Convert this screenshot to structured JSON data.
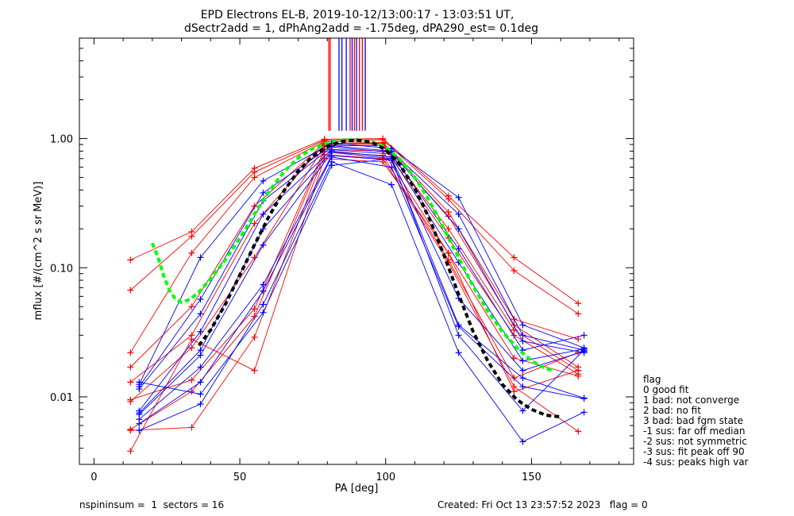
{
  "chart_data": {
    "type": "line",
    "title": "EPD Electrons EL-B, 2019-10-12/13:00:17 - 13:03:51 UT,",
    "subtitle": "dSectr2add = 1, dPhAng2add = -1.75deg, dPA290_est=   0.1deg",
    "xlabel": "PA [deg]",
    "ylabel": "mflux [#/(cm^2 s sr MeV)]",
    "xlim": [
      -5,
      185
    ],
    "ylim": [
      0.003,
      6.0
    ],
    "y_scale": "log",
    "x_ticks": [
      0,
      50,
      100,
      150
    ],
    "y_ticks": [
      {
        "value": 0.01,
        "label": "0.01"
      },
      {
        "value": 0.1,
        "label": "0.10"
      },
      {
        "value": 1.0,
        "label": "1.00"
      }
    ],
    "peak_markers": [
      {
        "x": 80.5,
        "color": "#ff0000"
      },
      {
        "x": 81.0,
        "color": "#ff0000"
      },
      {
        "x": 84.0,
        "color": "#0000ff"
      },
      {
        "x": 85.0,
        "color": "#0000ff"
      },
      {
        "x": 86.5,
        "color": "#0000ff"
      },
      {
        "x": 87.8,
        "color": "#ff0000"
      },
      {
        "x": 88.5,
        "color": "#0000ff"
      },
      {
        "x": 89.3,
        "color": "#ff0000"
      },
      {
        "x": 90.0,
        "color": "#0000ff"
      },
      {
        "x": 91.0,
        "color": "#ff0000"
      },
      {
        "x": 92.0,
        "color": "#ff0000"
      },
      {
        "x": 93.0,
        "color": "#0000ff"
      }
    ],
    "marker_range": [
      1.15,
      6.0
    ],
    "series": [
      {
        "color": "#ff0000",
        "points": [
          [
            12.5,
            0.115
          ],
          [
            33.5,
            0.19
          ],
          [
            55,
            0.59
          ],
          [
            79,
            0.99
          ],
          [
            99,
            1.0
          ],
          [
            121.5,
            0.36
          ],
          [
            144,
            0.12
          ],
          [
            166,
            0.053
          ]
        ]
      },
      {
        "color": "#ff0000",
        "points": [
          [
            12.5,
            0.067
          ],
          [
            33.5,
            0.175
          ],
          [
            55,
            0.55
          ],
          [
            79,
            0.97
          ],
          [
            99,
            0.98
          ],
          [
            121.5,
            0.34
          ],
          [
            144,
            0.095
          ],
          [
            166,
            0.044
          ]
        ]
      },
      {
        "color": "#ff0000",
        "points": [
          [
            12.5,
            0.022
          ],
          [
            33.5,
            0.13
          ],
          [
            55,
            0.5
          ],
          [
            79,
            0.95
          ],
          [
            99,
            0.93
          ],
          [
            121.5,
            0.27
          ],
          [
            144,
            0.04
          ],
          [
            166,
            0.028
          ]
        ]
      },
      {
        "color": "#ff0000",
        "points": [
          [
            12.5,
            0.017
          ],
          [
            33.5,
            0.05
          ],
          [
            55,
            0.3
          ],
          [
            79,
            0.92
          ],
          [
            99,
            0.92
          ],
          [
            121.5,
            0.25
          ],
          [
            144,
            0.036
          ],
          [
            166,
            0.017
          ]
        ]
      },
      {
        "color": "#ff0000",
        "points": [
          [
            12.5,
            0.013
          ],
          [
            33.5,
            0.03
          ],
          [
            55,
            0.22
          ],
          [
            79,
            0.9
          ],
          [
            99,
            0.9
          ],
          [
            121.5,
            0.2
          ],
          [
            144,
            0.033
          ],
          [
            166,
            0.016
          ]
        ]
      },
      {
        "color": "#ff0000",
        "points": [
          [
            12.5,
            0.0092
          ],
          [
            33.5,
            0.024
          ],
          [
            55,
            0.12
          ],
          [
            79,
            0.88
          ],
          [
            99,
            0.88
          ],
          [
            121.5,
            0.17
          ],
          [
            144,
            0.03
          ],
          [
            166,
            0.015
          ]
        ]
      },
      {
        "color": "#ff0000",
        "points": [
          [
            12.5,
            0.0095
          ],
          [
            33.5,
            0.0135
          ],
          [
            55,
            0.048
          ],
          [
            79,
            0.83
          ],
          [
            99,
            0.8
          ],
          [
            121.5,
            0.13
          ],
          [
            144,
            0.02
          ],
          [
            166,
            0.0145
          ]
        ]
      },
      {
        "color": "#ff0000",
        "points": [
          [
            12.5,
            0.0056
          ],
          [
            33.5,
            0.011
          ],
          [
            55,
            0.042
          ],
          [
            79,
            0.79
          ],
          [
            99,
            0.74
          ],
          [
            121.5,
            0.115
          ],
          [
            144,
            0.014
          ],
          [
            166,
            0.022
          ]
        ]
      },
      {
        "color": "#ff0000",
        "points": [
          [
            12.5,
            0.0055
          ],
          [
            33.5,
            0.0058
          ],
          [
            55,
            0.029
          ],
          [
            79,
            0.75
          ],
          [
            99,
            0.7
          ],
          [
            121.5,
            0.11
          ],
          [
            144,
            0.012
          ],
          [
            166,
            0.0054
          ]
        ]
      },
      {
        "color": "#ff0000",
        "points": [
          [
            12.5,
            0.0038
          ],
          [
            33.5,
            0.028
          ],
          [
            55,
            0.016
          ],
          [
            79,
            0.7
          ],
          [
            99,
            0.66
          ],
          [
            121.5,
            0.13
          ],
          [
            144,
            0.011
          ],
          [
            166,
            0.016
          ]
        ]
      },
      {
        "color": "#0000ff",
        "points": [
          [
            15.5,
            0.0125
          ],
          [
            36.5,
            0.12
          ],
          [
            58,
            0.47
          ],
          [
            81.5,
            0.92
          ],
          [
            102,
            0.84
          ],
          [
            125,
            0.35
          ],
          [
            147,
            0.036
          ],
          [
            168,
            0.024
          ]
        ]
      },
      {
        "color": "#0000ff",
        "points": [
          [
            15.5,
            0.012
          ],
          [
            36.5,
            0.057
          ],
          [
            58,
            0.38
          ],
          [
            81.5,
            0.88
          ],
          [
            102,
            0.8
          ],
          [
            125,
            0.26
          ],
          [
            147,
            0.03
          ],
          [
            168,
            0.023
          ]
        ]
      },
      {
        "color": "#0000ff",
        "points": [
          [
            15.5,
            0.0115
          ],
          [
            36.5,
            0.044
          ],
          [
            58,
            0.33
          ],
          [
            81.5,
            0.86
          ],
          [
            102,
            0.78
          ],
          [
            125,
            0.2
          ],
          [
            147,
            0.027
          ],
          [
            168,
            0.022
          ]
        ]
      },
      {
        "color": "#0000ff",
        "points": [
          [
            15.5,
            0.0078
          ],
          [
            36.5,
            0.032
          ],
          [
            58,
            0.26
          ],
          [
            81.5,
            0.82
          ],
          [
            102,
            0.76
          ],
          [
            125,
            0.14
          ],
          [
            147,
            0.023
          ],
          [
            168,
            0.03
          ]
        ]
      },
      {
        "color": "#0000ff",
        "points": [
          [
            15.5,
            0.0075
          ],
          [
            36.5,
            0.023
          ],
          [
            58,
            0.2
          ],
          [
            81.5,
            0.8
          ],
          [
            102,
            0.72
          ],
          [
            125,
            0.11
          ],
          [
            147,
            0.019
          ],
          [
            168,
            0.0235
          ]
        ]
      },
      {
        "color": "#0000ff",
        "points": [
          [
            15.5,
            0.0073
          ],
          [
            36.5,
            0.021
          ],
          [
            58,
            0.15
          ],
          [
            81.5,
            0.78
          ],
          [
            102,
            0.7
          ],
          [
            125,
            0.058
          ],
          [
            147,
            0.016
          ],
          [
            168,
            0.0225
          ]
        ]
      },
      {
        "color": "#0000ff",
        "points": [
          [
            15.5,
            0.0067
          ],
          [
            36.5,
            0.017
          ],
          [
            58,
            0.074
          ],
          [
            81.5,
            0.74
          ],
          [
            102,
            0.68
          ],
          [
            125,
            0.036
          ],
          [
            147,
            0.014
          ],
          [
            168,
            0.0098
          ]
        ]
      },
      {
        "color": "#0000ff",
        "points": [
          [
            15.5,
            0.0062
          ],
          [
            36.5,
            0.013
          ],
          [
            58,
            0.066
          ],
          [
            81.5,
            0.72
          ],
          [
            102,
            0.6
          ],
          [
            125,
            0.035
          ],
          [
            147,
            0.012
          ],
          [
            168,
            0.0097
          ]
        ]
      },
      {
        "color": "#0000ff",
        "points": [
          [
            15.5,
            0.0055
          ],
          [
            36.5,
            0.0088
          ],
          [
            58,
            0.052
          ],
          [
            81.5,
            0.66
          ],
          [
            102,
            0.44
          ],
          [
            125,
            0.022
          ],
          [
            147,
            0.0045
          ],
          [
            168,
            0.0076
          ]
        ]
      },
      {
        "color": "#0000ff",
        "points": [
          [
            15.5,
            0.013
          ],
          [
            36.5,
            0.0105
          ],
          [
            58,
            0.045
          ],
          [
            81.5,
            0.62
          ],
          [
            102,
            0.7
          ],
          [
            125,
            0.03
          ],
          [
            147,
            0.0078
          ],
          [
            168,
            0.023
          ]
        ]
      }
    ],
    "fits": [
      {
        "color": "#00ff00",
        "style": "dashed",
        "points": [
          [
            20,
            0.155
          ],
          [
            22,
            0.12
          ],
          [
            24,
            0.085
          ],
          [
            26,
            0.066
          ],
          [
            28,
            0.057
          ],
          [
            30,
            0.054
          ],
          [
            33,
            0.057
          ],
          [
            36,
            0.065
          ],
          [
            40,
            0.082
          ],
          [
            45,
            0.115
          ],
          [
            50,
            0.17
          ],
          [
            55,
            0.26
          ],
          [
            60,
            0.39
          ],
          [
            65,
            0.55
          ],
          [
            70,
            0.71
          ],
          [
            75,
            0.84
          ],
          [
            80,
            0.93
          ],
          [
            85,
            0.975
          ],
          [
            90,
            0.98
          ],
          [
            95,
            0.95
          ],
          [
            100,
            0.86
          ],
          [
            105,
            0.69
          ],
          [
            110,
            0.5
          ],
          [
            115,
            0.33
          ],
          [
            120,
            0.2
          ],
          [
            125,
            0.12
          ],
          [
            130,
            0.072
          ],
          [
            135,
            0.046
          ],
          [
            140,
            0.032
          ],
          [
            145,
            0.024
          ],
          [
            150,
            0.019
          ],
          [
            155,
            0.0165
          ],
          [
            158,
            0.016
          ]
        ]
      },
      {
        "color": "#000000",
        "style": "dashed",
        "points": [
          [
            36,
            0.025
          ],
          [
            40,
            0.033
          ],
          [
            45,
            0.052
          ],
          [
            50,
            0.088
          ],
          [
            55,
            0.15
          ],
          [
            60,
            0.25
          ],
          [
            65,
            0.39
          ],
          [
            70,
            0.56
          ],
          [
            75,
            0.73
          ],
          [
            80,
            0.87
          ],
          [
            85,
            0.95
          ],
          [
            90,
            0.975
          ],
          [
            95,
            0.94
          ],
          [
            100,
            0.82
          ],
          [
            105,
            0.62
          ],
          [
            110,
            0.41
          ],
          [
            115,
            0.24
          ],
          [
            120,
            0.125
          ],
          [
            125,
            0.062
          ],
          [
            130,
            0.032
          ],
          [
            135,
            0.019
          ],
          [
            140,
            0.0125
          ],
          [
            145,
            0.0095
          ],
          [
            150,
            0.008
          ],
          [
            155,
            0.0072
          ],
          [
            160,
            0.007
          ]
        ]
      }
    ]
  },
  "legend": {
    "title": "flag",
    "items": [
      " 0 good fit",
      " 1 bad: not converge",
      " 2 bad: no fit",
      " 3 bad: bad fgm state",
      "-1 sus: far off median",
      "-2 sus: not symmetric",
      "-3 sus: fit peak off 90",
      "-4 sus: peaks high var"
    ]
  },
  "footer": {
    "left": "nspininsum =  1  sectors = 16",
    "right": "Created: Fri Oct 13 23:57:52 2023   flag = 0"
  }
}
